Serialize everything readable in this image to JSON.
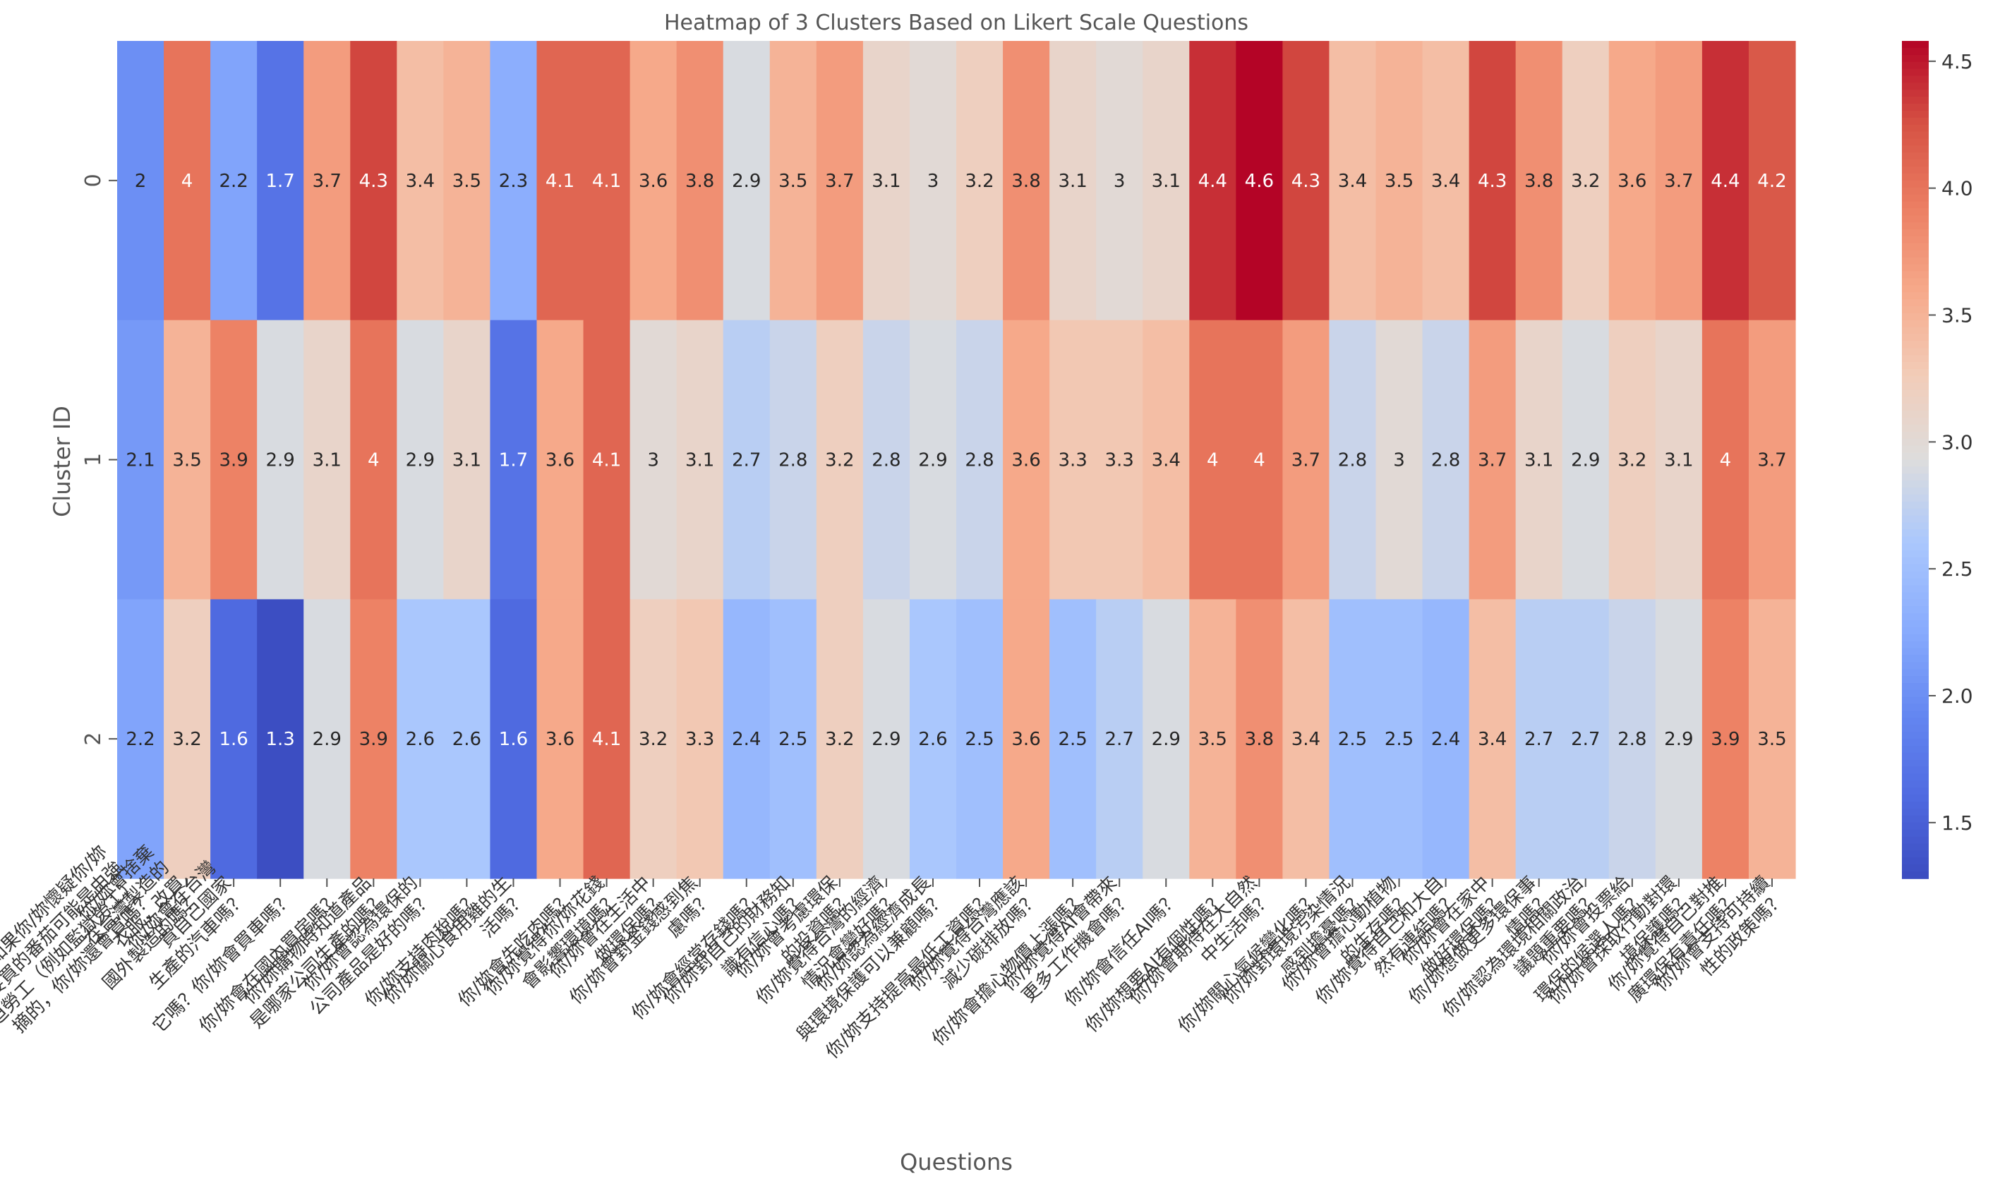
{
  "chart_data": {
    "type": "heatmap",
    "title": "Heatmap of 3 Clusters Based on Likert Scale Questions",
    "xlabel": "Questions",
    "ylabel": "Cluster ID",
    "rows": [
      "0",
      "1",
      "2"
    ],
    "columns": [
      "如果你/妳懷疑你/妳要買的番茄可能是由強迫勞工（例如監獄勞工）摘的，你/妳還會買嗎？",
      "你/妳會捨棄在台灣製造的衣服，改買國外製造的嗎？",
      "你/妳會在台灣買自己國家生產的汽車嗎？",
      "你/妳會買車嗎？",
      "你/妳會在國內買房嗎？",
      "你/妳購物時知道產品是哪家公司生產的嗎？",
      "你/妳會認為環保的公司產品是好的嗎？",
      "你/妳支持肉稅嗎？",
      "你/妳關心食用雞的生活嗎？",
      "你/妳會先吃肉嗎？",
      "你/妳覺得你/妳花錢會影響環境嗎？",
      "你/妳會在生活中做環保嗎？",
      "你/妳會對金錢感到焦慮嗎？",
      "你/妳會經常存錢嗎？",
      "你/妳對自己的財務知識有信心嗎？",
      "你/妳會考慮環保的投資嗎？",
      "你/妳覺得台灣的經濟情況會變好嗎？",
      "你/妳認為經濟成長與環境保護可以兼顧嗎？",
      "你/妳支持提高最低工資嗎？",
      "你/妳覺得台灣應該減少碳排放嗎？",
      "你/妳會擔心物價上漲嗎？",
      "你/妳覺得AI會帶來更多工作機會嗎？",
      "你/妳會信任AI嗎？",
      "你/妳想要AI有個性嗎？",
      "你/妳會期待在大自然中生活嗎？",
      "你/妳關心氣候變化嗎？",
      "你/妳對環境污染情況感到擔憂嗎？",
      "你/妳會擔心動植物的生存嗎？",
      "你/妳覺得自己和大自然有連結嗎？",
      "你/妳會在家中做好環保嗎？",
      "你/妳想做更多環保事情嗎？",
      "你/妳認為環境相關政治議題重要嗎？",
      "你/妳會投票給環保的候選人嗎？",
      "你/妳會採取行動對環境保護嗎？",
      "你/妳覺得自己對推廣環保有責任嗎？",
      "你/妳會支持可持續性的政策嗎？"
    ],
    "x_tick_labels": [
      "如果你/妳懷疑你/妳\n要買的番茄可能是由強\n迫勞工（例如監獄勞工）\n摘的，你/妳還會買嗎？",
      "你/妳會捨棄\n在台灣製造的\n衣服，改買\n國外製造的嗎？",
      "你/妳會在台灣\n買自己國家\n生產的汽車嗎？",
      "它嗎？你/妳會買車嗎？",
      "你/妳會在國內買房嗎？",
      "你/妳購物時知道產品\n是哪家公司生產的嗎？",
      "你/妳會認為環保的\n公司產品是好的嗎？",
      "你/妳支持肉稅嗎？",
      "你/妳關心食用雞的生\n活嗎？",
      "你/妳會先吃肉嗎？",
      "你/妳覺得你/妳花錢\n會影響環境嗎？",
      "你/妳會在生活中\n做環保嗎？",
      "你/妳會對金錢感到焦\n慮嗎？",
      "你/妳會經常存錢嗎？",
      "你/妳對自己的財務知\n識有信心嗎？",
      "你/妳會考慮環保\n的投資嗎？",
      "你/妳覺得台灣的經濟\n情況會變好嗎？",
      "你/妳認為經濟成長\n與環境保護可以兼顧嗎？",
      "你/妳支持提高最低工資嗎？",
      "你/妳覺得台灣應該\n減少碳排放嗎？",
      "你/妳會擔心物價上漲嗎？",
      "你/妳覺得AI會帶來\n更多工作機會嗎？",
      "你/妳會信任AI嗎？",
      "你/妳想要AI有個性嗎？",
      "你/妳會期待在大自然\n中生活嗎？",
      "你/妳關心氣候變化嗎？",
      "你/妳對環境污染情況\n感到擔憂嗎？",
      "你/妳會擔心動植物\n的生存嗎？",
      "你/妳覺得自己和大自\n然有連結嗎？",
      "你/妳會在家中\n做好環保嗎？",
      "你/妳想做更多環保事\n情嗎？",
      "你/妳認為環境相關政治\n議題重要嗎？",
      "你/妳會投票給\n環保的候選人嗎？",
      "你/妳會採取行動對環\n境保護嗎？",
      "你/妳覺得自己對推\n廣環保有責任嗎？",
      "你/妳會支持可持續\n性的政策嗎？"
    ],
    "values": [
      [
        2.0,
        4.0,
        2.2,
        1.7,
        3.7,
        4.3,
        3.4,
        3.5,
        2.3,
        4.1,
        4.1,
        3.6,
        3.8,
        2.9,
        3.5,
        3.7,
        3.1,
        3.0,
        3.2,
        3.8,
        3.1,
        3.0,
        3.1,
        4.4,
        4.6,
        4.3,
        3.4,
        3.5,
        3.4,
        4.3,
        3.8,
        3.2,
        3.6,
        3.7,
        4.4,
        4.2
      ],
      [
        2.1,
        3.5,
        3.9,
        2.9,
        3.1,
        4.0,
        2.9,
        3.1,
        1.7,
        3.6,
        4.1,
        3.0,
        3.1,
        2.7,
        2.8,
        3.2,
        2.8,
        2.9,
        2.8,
        3.6,
        3.3,
        3.3,
        3.4,
        4.0,
        4.0,
        3.7,
        2.8,
        3.0,
        2.8,
        3.7,
        3.1,
        2.9,
        3.2,
        3.1,
        4.0,
        3.7
      ],
      [
        2.2,
        3.2,
        1.6,
        1.3,
        2.9,
        3.9,
        2.6,
        2.6,
        1.6,
        3.6,
        4.1,
        3.2,
        3.3,
        2.4,
        2.5,
        3.2,
        2.9,
        2.6,
        2.5,
        3.6,
        2.5,
        2.7,
        2.9,
        3.5,
        3.8,
        3.4,
        2.5,
        2.5,
        2.4,
        3.4,
        2.7,
        2.7,
        2.8,
        2.9,
        3.9,
        3.5
      ]
    ],
    "annotations": [
      [
        "2",
        "4",
        "2.2",
        "1.7",
        "3.7",
        "4.3",
        "3.4",
        "3.5",
        "2.3",
        "4.1",
        "4.1",
        "3.6",
        "3.8",
        "2.9",
        "3.5",
        "3.7",
        "3.1",
        "3",
        "3.2",
        "3.8",
        "3.1",
        "3",
        "3.1",
        "4.4",
        "4.6",
        "4.3",
        "3.4",
        "3.5",
        "3.4",
        "4.3",
        "3.8",
        "3.2",
        "3.6",
        "3.7",
        "4.4",
        "4.2"
      ],
      [
        "2.1",
        "3.5",
        "3.9",
        "2.9",
        "3.1",
        "4",
        "2.9",
        "3.1",
        "1.7",
        "3.6",
        "4.1",
        "3",
        "3.1",
        "2.7",
        "2.8",
        "3.2",
        "2.8",
        "2.9",
        "2.8",
        "3.6",
        "3.3",
        "3.3",
        "3.4",
        "4",
        "4",
        "3.7",
        "2.8",
        "3",
        "2.8",
        "3.7",
        "3.1",
        "2.9",
        "3.2",
        "3.1",
        "4",
        "3.7"
      ],
      [
        "2.2",
        "3.2",
        "1.6",
        "1.3",
        "2.9",
        "3.9",
        "2.6",
        "2.6",
        "1.6",
        "3.6",
        "4.1",
        "3.2",
        "3.3",
        "2.4",
        "2.5",
        "3.2",
        "2.9",
        "2.6",
        "2.5",
        "3.6",
        "2.5",
        "2.7",
        "2.9",
        "3.5",
        "3.8",
        "3.4",
        "2.5",
        "2.5",
        "2.4",
        "3.4",
        "2.7",
        "2.7",
        "2.8",
        "2.9",
        "3.9",
        "3.5"
      ]
    ],
    "colormap": "coolwarm",
    "color_range": [
      1.28,
      4.58
    ],
    "colorbar_ticks": [
      "1.5",
      "2.0",
      "2.5",
      "3.0",
      "3.5",
      "4.0",
      "4.5"
    ],
    "colorbar_tick_values": [
      1.5,
      2.0,
      2.5,
      3.0,
      3.5,
      4.0,
      4.5
    ],
    "grid": false,
    "legend": "colorbar-right",
    "colors": {
      "low": "#3b4cc0",
      "mid": "#dddddd",
      "high": "#b40426",
      "text": "#555555",
      "annotation_dark": "#262626",
      "annotation_light": "#ffffff"
    }
  }
}
